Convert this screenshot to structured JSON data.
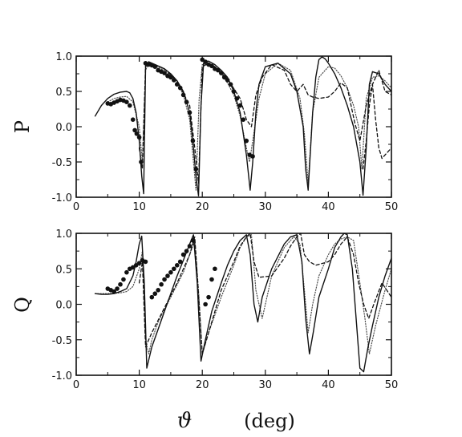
{
  "chart_data": [
    {
      "type": "line",
      "ylabel": "P",
      "xlim": [
        0,
        50
      ],
      "ylim": [
        -1.0,
        1.0
      ],
      "xticks": [
        "0",
        "10",
        "20",
        "30",
        "40",
        "50"
      ],
      "yticks": [
        "1.0",
        "0.5",
        "0.0",
        "-0.5",
        "-1.0"
      ],
      "series": [
        {
          "style": "solid",
          "x": [
            3,
            4,
            5,
            6,
            7,
            8,
            8.5,
            9,
            9.5,
            10,
            10.4,
            10.7,
            11,
            11.5,
            12,
            13,
            14,
            15,
            16,
            17,
            18,
            18.5,
            19,
            19.4,
            19.8,
            20.2,
            21,
            22,
            23,
            24,
            25,
            26,
            27,
            27.6,
            28,
            28.5,
            29,
            30,
            32,
            34,
            35,
            36,
            36.4,
            36.8,
            37.5,
            38,
            38.5,
            39,
            39.5,
            40,
            41,
            42,
            43,
            44,
            45,
            45.5,
            46,
            46.5,
            47,
            48,
            49,
            50
          ],
          "y": [
            0.15,
            0.3,
            0.4,
            0.46,
            0.49,
            0.5,
            0.48,
            0.4,
            0.2,
            -0.2,
            -0.7,
            -0.95,
            0.85,
            0.92,
            0.9,
            0.86,
            0.82,
            0.75,
            0.65,
            0.5,
            0.2,
            -0.2,
            -0.7,
            -0.98,
            0.3,
            0.9,
            0.93,
            0.88,
            0.8,
            0.7,
            0.5,
            0.2,
            -0.4,
            -0.9,
            -0.5,
            0.2,
            0.6,
            0.85,
            0.9,
            0.75,
            0.5,
            0.0,
            -0.6,
            -0.9,
            0.2,
            0.7,
            0.95,
            0.99,
            0.96,
            0.9,
            0.75,
            0.55,
            0.3,
            0.0,
            -0.5,
            -0.97,
            -0.3,
            0.6,
            0.78,
            0.75,
            0.6,
            0.5
          ]
        },
        {
          "style": "dotted",
          "x": [
            5,
            6,
            7,
            8,
            9,
            10,
            10.5,
            11,
            11.5,
            12,
            13,
            14,
            15,
            16,
            17,
            18,
            18.6,
            19,
            19.5,
            20,
            21,
            22,
            23,
            24,
            25,
            26,
            27,
            27.5,
            28,
            29,
            30,
            32,
            34,
            35.5,
            36.2,
            36.8,
            37.5,
            38.5,
            40,
            41,
            42,
            43,
            44,
            44.8,
            45.3,
            46,
            47,
            48,
            49,
            50
          ],
          "y": [
            0.35,
            0.4,
            0.42,
            0.43,
            0.35,
            0.0,
            -0.5,
            0.8,
            0.9,
            0.88,
            0.84,
            0.8,
            0.72,
            0.62,
            0.45,
            0.1,
            -0.5,
            -0.9,
            0.4,
            0.88,
            0.9,
            0.85,
            0.75,
            0.62,
            0.45,
            0.15,
            -0.3,
            -0.5,
            -0.2,
            0.4,
            0.75,
            0.9,
            0.8,
            0.4,
            -0.1,
            -0.8,
            0.2,
            0.7,
            0.85,
            0.83,
            0.72,
            0.55,
            0.3,
            0.0,
            -0.6,
            0.4,
            0.7,
            0.72,
            0.65,
            0.55
          ]
        },
        {
          "style": "dashed",
          "x": [
            10,
            10.5,
            11,
            12,
            14,
            16,
            18,
            18.8,
            19.4,
            20,
            21,
            22,
            24,
            26,
            27,
            27.8,
            28.5,
            29.5,
            31,
            33,
            34,
            35,
            36,
            36.8,
            37.5,
            38.5,
            40,
            41,
            42,
            43,
            44.2,
            45,
            46,
            47,
            48,
            49,
            50
          ],
          "y": [
            -0.3,
            -0.6,
            0.88,
            0.9,
            0.82,
            0.65,
            0.3,
            -0.3,
            -0.8,
            0.85,
            0.9,
            0.85,
            0.68,
            0.4,
            0.1,
            0.0,
            0.45,
            0.7,
            0.88,
            0.8,
            0.6,
            0.5,
            0.6,
            0.45,
            0.42,
            0.4,
            0.42,
            0.5,
            0.62,
            0.55,
            0.05,
            -0.2,
            0.3,
            0.6,
            0.8,
            0.5,
            0.45
          ]
        },
        {
          "style": "dashed",
          "x": [
            45.5,
            46,
            46.5,
            47,
            47.5,
            48,
            48.5,
            49,
            49.5,
            50
          ],
          "y": [
            -0.6,
            -0.2,
            0.3,
            0.6,
            0.1,
            -0.3,
            -0.45,
            -0.4,
            -0.35,
            -0.3
          ]
        },
        {
          "style": "points",
          "x": [
            5,
            5.5,
            6,
            6.5,
            7,
            7.5,
            8,
            8.5,
            9,
            9.3,
            9.6,
            10,
            10.3,
            11,
            11.5,
            12,
            12.5,
            13,
            13.5,
            14,
            14.5,
            15,
            15.5,
            16,
            16.5,
            17,
            17.5,
            18,
            18.5,
            19,
            20,
            20.5,
            21,
            21.5,
            22,
            22.5,
            23,
            23.5,
            24,
            24.5,
            25,
            25.5,
            26,
            26.5,
            27,
            27.5,
            28
          ],
          "y": [
            0.33,
            0.32,
            0.34,
            0.36,
            0.38,
            0.37,
            0.35,
            0.3,
            0.1,
            -0.05,
            -0.1,
            -0.15,
            -0.5,
            0.9,
            0.88,
            0.87,
            0.85,
            0.8,
            0.78,
            0.76,
            0.72,
            0.7,
            0.66,
            0.6,
            0.55,
            0.45,
            0.35,
            0.2,
            -0.2,
            -0.6,
            0.95,
            0.92,
            0.88,
            0.86,
            0.82,
            0.8,
            0.76,
            0.7,
            0.66,
            0.6,
            0.5,
            0.4,
            0.3,
            0.1,
            -0.2,
            -0.4,
            -0.42
          ]
        }
      ]
    },
    {
      "type": "line",
      "ylabel": "Q",
      "xlim": [
        0,
        50
      ],
      "ylim": [
        -1.0,
        1.0
      ],
      "xticks": [
        "0",
        "10",
        "20",
        "30",
        "40",
        "50"
      ],
      "yticks": [
        "1.0",
        "0.5",
        "0.0",
        "-0.5",
        "-1.0"
      ],
      "series": [
        {
          "style": "solid",
          "x": [
            3,
            4,
            5,
            6,
            7,
            8,
            9,
            9.5,
            10,
            10.4,
            10.8,
            11.2,
            12,
            13,
            14,
            15,
            16,
            17,
            18,
            18.6,
            19.2,
            19.8,
            20.5,
            21.5,
            23,
            24,
            25,
            26,
            27,
            27.6,
            28.2,
            28.8,
            29.5,
            31,
            33,
            34,
            35,
            35.8,
            36.4,
            37,
            37.6,
            38.5,
            40,
            41,
            42,
            42.5,
            43,
            43.8,
            44.4,
            45,
            45.6,
            46.3,
            47,
            48,
            49,
            50
          ],
          "y": [
            0.15,
            0.14,
            0.14,
            0.15,
            0.18,
            0.22,
            0.4,
            0.6,
            0.85,
            0.96,
            0.3,
            -0.9,
            -0.6,
            -0.35,
            -0.1,
            0.15,
            0.4,
            0.62,
            0.85,
            0.98,
            0.3,
            -0.8,
            -0.5,
            -0.1,
            0.3,
            0.55,
            0.75,
            0.9,
            0.98,
            0.7,
            0.0,
            -0.25,
            0.1,
            0.5,
            0.85,
            0.95,
            0.98,
            0.6,
            -0.2,
            -0.7,
            -0.4,
            0.1,
            0.5,
            0.8,
            0.95,
            1.0,
            0.98,
            0.5,
            -0.2,
            -0.9,
            -0.95,
            -0.6,
            -0.3,
            0.1,
            0.4,
            0.65
          ]
        },
        {
          "style": "dotted",
          "x": [
            3,
            5,
            7,
            8,
            9,
            10,
            10.5,
            11,
            11.5,
            12,
            13,
            15,
            17,
            18,
            18.8,
            19.4,
            20,
            21,
            23,
            25,
            26,
            27,
            27.8,
            28.5,
            29.5,
            31,
            33,
            34.5,
            35.5,
            36.2,
            36.8,
            37.5,
            38.5,
            40,
            41,
            42,
            43,
            44,
            45,
            45.8,
            46.5,
            47.5,
            49,
            50
          ],
          "y": [
            0.15,
            0.15,
            0.16,
            0.18,
            0.25,
            0.5,
            0.75,
            -0.5,
            -0.7,
            -0.5,
            -0.25,
            0.1,
            0.45,
            0.7,
            0.9,
            0.2,
            -0.7,
            -0.4,
            0.1,
            0.55,
            0.8,
            0.95,
            0.98,
            0.2,
            -0.2,
            0.4,
            0.8,
            0.95,
            0.85,
            0.2,
            -0.4,
            0.0,
            0.4,
            0.7,
            0.85,
            0.92,
            0.95,
            0.9,
            0.3,
            -0.2,
            -0.7,
            -0.3,
            0.2,
            0.5
          ]
        },
        {
          "style": "dashed",
          "x": [
            10,
            10.5,
            11,
            12,
            14,
            16,
            18,
            18.8,
            19.5,
            20,
            21,
            23,
            25,
            26,
            27,
            27.6,
            28.2,
            29,
            31,
            33,
            34,
            35,
            35.6,
            36.2,
            37,
            38,
            40,
            41,
            42,
            43,
            44,
            44.8,
            45.6,
            46.4,
            47.2,
            48.5,
            50
          ],
          "y": [
            0.3,
            0.6,
            -0.6,
            -0.4,
            -0.05,
            0.3,
            0.7,
            0.95,
            0.0,
            -0.7,
            -0.4,
            0.2,
            0.6,
            0.82,
            0.95,
            1.0,
            0.6,
            0.38,
            0.4,
            0.65,
            0.82,
            0.95,
            1.0,
            0.7,
            0.6,
            0.55,
            0.6,
            0.7,
            0.85,
            0.95,
            0.7,
            0.3,
            0.0,
            -0.2,
            0.0,
            0.3,
            0.1
          ]
        },
        {
          "style": "points",
          "x": [
            5,
            5.5,
            6,
            6.5,
            7,
            7.5,
            8,
            8.5,
            9,
            9.5,
            10,
            10.5,
            11,
            12,
            12.5,
            13,
            13.5,
            14,
            14.5,
            15,
            15.5,
            16,
            16.5,
            17,
            17.5,
            18,
            18.5,
            20.5,
            21,
            21.5,
            22
          ],
          "y": [
            0.22,
            0.2,
            0.18,
            0.22,
            0.28,
            0.35,
            0.45,
            0.5,
            0.52,
            0.55,
            0.58,
            0.62,
            0.6,
            0.1,
            0.15,
            0.2,
            0.28,
            0.35,
            0.4,
            0.45,
            0.5,
            0.55,
            0.6,
            0.7,
            0.75,
            0.82,
            0.9,
            0.0,
            0.1,
            0.35,
            0.5
          ]
        }
      ]
    }
  ],
  "xaxis": {
    "symbol": "ϑ",
    "unit": "(deg)"
  }
}
